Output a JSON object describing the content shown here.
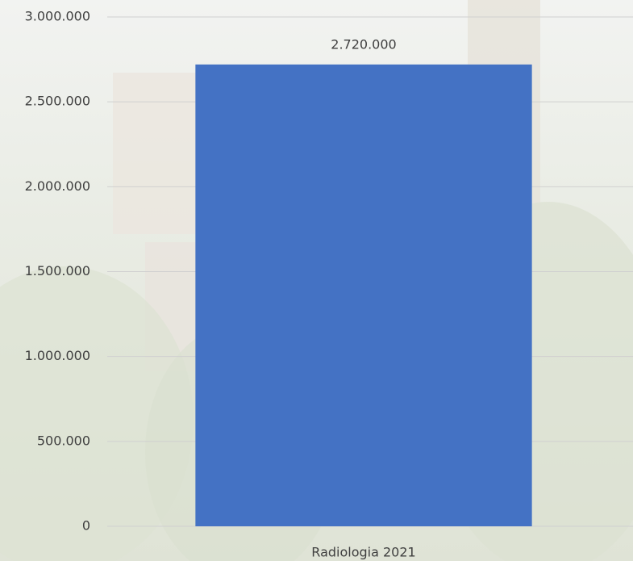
{
  "chart_data": {
    "type": "bar",
    "categories": [
      "Radiologia 2021"
    ],
    "values": [
      2720000
    ],
    "value_labels": [
      "2.720.000"
    ],
    "color": "#4472c4",
    "ylim": [
      0,
      3000000
    ],
    "yticks": [
      0,
      {
        "value": 500000,
        "label": "500.000"
      },
      {
        "value": 1000000,
        "label": "1.000.000"
      },
      {
        "value": 1500000,
        "label": "1.500.000"
      },
      {
        "value": 2000000,
        "label": "2.000.000"
      },
      {
        "value": 2500000,
        "label": "2.500.000"
      },
      {
        "value": 3000000,
        "label": "3.000.000"
      }
    ],
    "grid": true
  }
}
